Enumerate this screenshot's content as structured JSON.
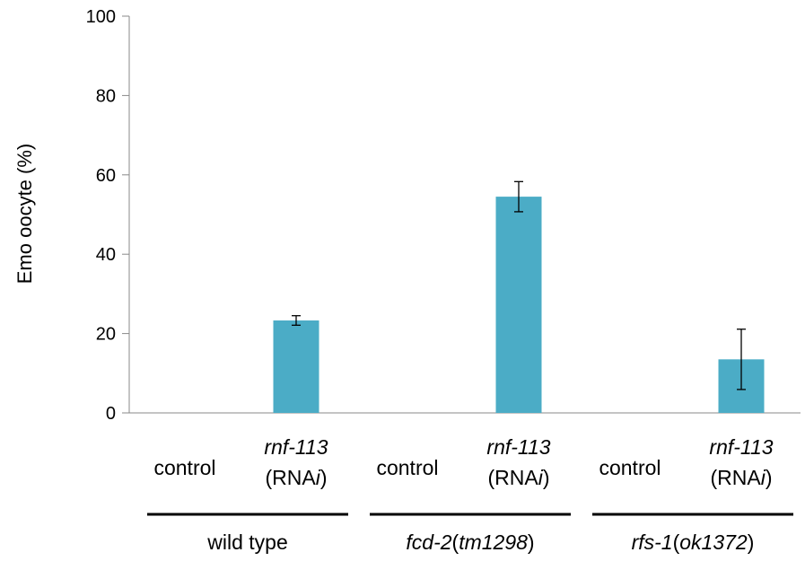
{
  "chart_data": {
    "type": "bar",
    "ylabel": "Emo oocyte (%)",
    "ylim": [
      0,
      100
    ],
    "yticks": [
      0,
      20,
      40,
      60,
      80,
      100
    ],
    "bar_color": "#4BACC6",
    "groups": [
      {
        "name": "wild type",
        "name_parts": [
          {
            "text": "wild type",
            "italic": false
          }
        ],
        "bars": [
          {
            "label_lines": [
              [
                {
                  "text": "control",
                  "italic": false
                }
              ]
            ],
            "value": 0,
            "error": null
          },
          {
            "label_lines": [
              [
                {
                  "text": "rnf-113",
                  "italic": true
                }
              ],
              [
                {
                  "text": "(RNA",
                  "italic": false
                },
                {
                  "text": "i",
                  "italic": true
                },
                {
                  "text": ")",
                  "italic": false
                }
              ]
            ],
            "value": 23.3,
            "error": 1.2
          }
        ]
      },
      {
        "name": "fcd-2(tm1298)",
        "name_parts": [
          {
            "text": "fcd-2",
            "italic": true
          },
          {
            "text": "(",
            "italic": false
          },
          {
            "text": "tm1298",
            "italic": true
          },
          {
            "text": ")",
            "italic": false
          }
        ],
        "bars": [
          {
            "label_lines": [
              [
                {
                  "text": "control",
                  "italic": false
                }
              ]
            ],
            "value": 0,
            "error": null
          },
          {
            "label_lines": [
              [
                {
                  "text": "rnf-113",
                  "italic": true
                }
              ],
              [
                {
                  "text": "(RNA",
                  "italic": false
                },
                {
                  "text": "i",
                  "italic": true
                },
                {
                  "text": ")",
                  "italic": false
                }
              ]
            ],
            "value": 54.5,
            "error": 3.8
          }
        ]
      },
      {
        "name": "rfs-1(ok1372)",
        "name_parts": [
          {
            "text": "rfs-1",
            "italic": true
          },
          {
            "text": "(",
            "italic": false
          },
          {
            "text": "ok1372",
            "italic": true
          },
          {
            "text": ")",
            "italic": false
          }
        ],
        "bars": [
          {
            "label_lines": [
              [
                {
                  "text": "control",
                  "italic": false
                }
              ]
            ],
            "value": 0,
            "error": null
          },
          {
            "label_lines": [
              [
                {
                  "text": "rnf-113",
                  "italic": true
                }
              ],
              [
                {
                  "text": "(RNA",
                  "italic": false
                },
                {
                  "text": "i",
                  "italic": true
                },
                {
                  "text": ")",
                  "italic": false
                }
              ]
            ],
            "value": 13.5,
            "error": 7.6
          }
        ]
      }
    ]
  }
}
